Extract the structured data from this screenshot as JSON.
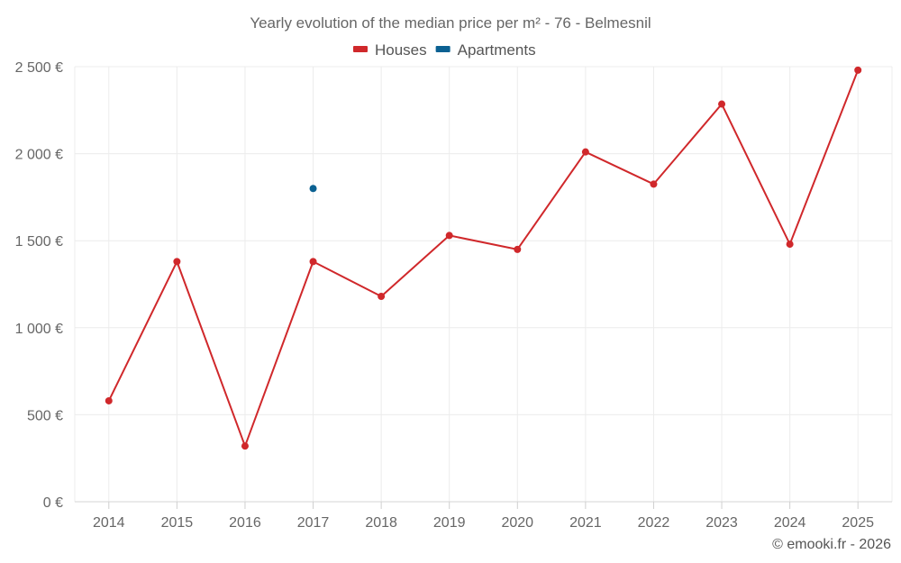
{
  "chart_data": {
    "type": "line",
    "title": "Yearly evolution of the median price per m² - 76 - Belmesnil",
    "categories": [
      "2014",
      "2015",
      "2016",
      "2017",
      "2018",
      "2019",
      "2020",
      "2021",
      "2022",
      "2023",
      "2024",
      "2025"
    ],
    "ylim": [
      0,
      2500
    ],
    "yticks": [
      0,
      500,
      1000,
      1500,
      2000,
      2500
    ],
    "ytick_labels": [
      "0 €",
      "500 €",
      "1 000 €",
      "1 500 €",
      "2 000 €",
      "2 500 €"
    ],
    "xlabel": "",
    "ylabel": "",
    "grid": true,
    "legend_position": "top-center",
    "series": [
      {
        "name": "Houses",
        "color": "#d0282b",
        "values": [
          580,
          1380,
          320,
          1380,
          1180,
          1530,
          1450,
          2010,
          1825,
          2285,
          1480,
          2480
        ]
      },
      {
        "name": "Apartments",
        "color": "#0b6192",
        "values": [
          null,
          null,
          null,
          1800,
          null,
          null,
          null,
          null,
          null,
          null,
          null,
          null
        ]
      }
    ]
  },
  "credit": "© emooki.fr - 2026"
}
